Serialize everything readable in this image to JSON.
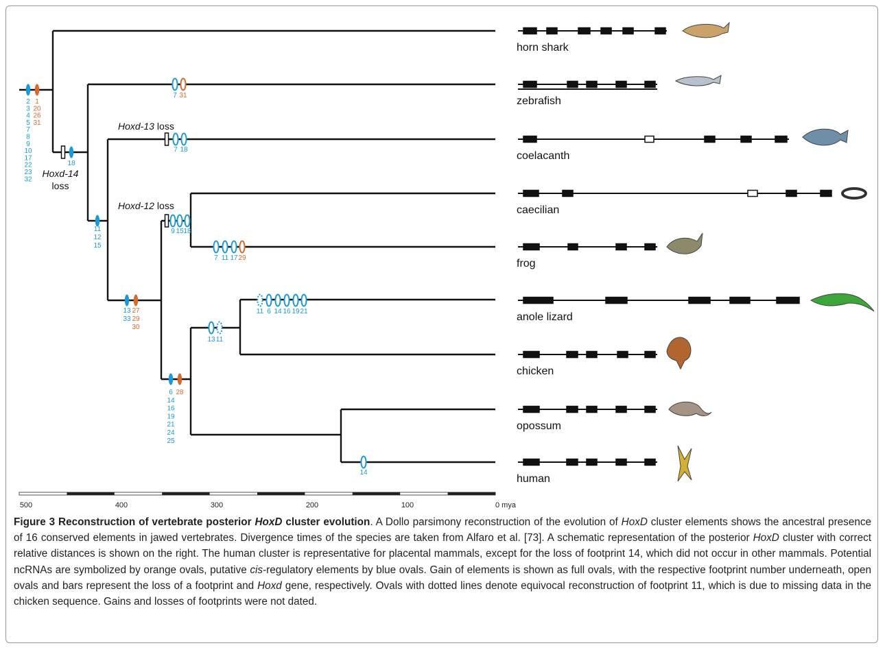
{
  "figure": {
    "species": [
      "horn shark",
      "zebrafish",
      "coelacanth",
      "caecilian",
      "frog",
      "anole lizard",
      "chicken",
      "opossum",
      "human"
    ],
    "events": [
      {
        "columns": [
          [
            "2",
            "3",
            "4",
            "5",
            "7",
            "8",
            "9",
            "10",
            "17",
            "22",
            "23",
            "32"
          ],
          [
            "1",
            "20",
            "26",
            "31"
          ]
        ]
      },
      {
        "columns": [
          [
            "18"
          ]
        ]
      },
      {
        "columns": [
          [
            "7"
          ],
          [
            "31"
          ]
        ]
      },
      {
        "columns": [
          [
            "7"
          ],
          [
            "18"
          ]
        ]
      },
      {
        "columns": [
          [
            "11",
            "12",
            "15"
          ]
        ]
      },
      {
        "columns": [
          [
            "9"
          ],
          [
            "15"
          ],
          [
            "18"
          ]
        ]
      },
      {
        "columns": [
          [
            "7"
          ],
          [
            "11"
          ],
          [
            "17"
          ],
          [
            "29"
          ]
        ]
      },
      {
        "columns": [
          [
            "13",
            "33"
          ],
          [
            "27",
            "29",
            "30"
          ]
        ]
      },
      {
        "columns": [
          [
            "13"
          ],
          [
            "11"
          ]
        ]
      },
      {
        "columns": [
          [
            "11"
          ],
          [
            "6"
          ],
          [
            "14"
          ],
          [
            "16"
          ],
          [
            "19"
          ],
          [
            "21"
          ]
        ]
      },
      {
        "columns": [
          [
            "6",
            "14",
            "16",
            "19",
            "21",
            "24",
            "25"
          ],
          [
            "28"
          ]
        ]
      },
      {
        "columns": [
          [
            "14"
          ]
        ]
      }
    ],
    "gene_losses": [
      {
        "gene": "Hoxd-14",
        "text": "loss"
      },
      {
        "gene": "Hoxd-13",
        "text": "loss"
      },
      {
        "gene": "Hoxd-12",
        "text": "loss"
      }
    ],
    "axis_labels": [
      "500",
      "400",
      "300",
      "200",
      "100",
      "0 mya"
    ]
  },
  "caption": [
    {
      "text": "Figure 3 Reconstruction of vertebrate posterior ",
      "style": "bold"
    },
    {
      "text": "HoxD",
      "style": "bold-italic"
    },
    {
      "text": " cluster evolution",
      "style": "bold"
    },
    {
      "text": ". A Dollo parsimony reconstruction of the evolution of ",
      "style": "normal"
    },
    {
      "text": "HoxD",
      "style": "italic"
    },
    {
      "text": " cluster elements shows the ancestral presence of 16 conserved elements in jawed vertebrates. Divergence times of the species are taken from Alfaro et al. [73]. A schematic representation of the posterior ",
      "style": "normal"
    },
    {
      "text": "HoxD",
      "style": "italic"
    },
    {
      "text": " cluster with correct relative distances is shown on the right. The human cluster is representative for placental mammals, except for the loss of footprint 14, which did not occur in other mammals. Potential ncRNAs are symbolized by orange ovals, putative ",
      "style": "normal"
    },
    {
      "text": "cis",
      "style": "italic"
    },
    {
      "text": "-regulatory elements by blue ovals. Gain of elements is shown as full ovals, with the respective footprint number underneath, open ovals and bars represent the loss of a footprint and ",
      "style": "normal"
    },
    {
      "text": "Hoxd",
      "style": "italic"
    },
    {
      "text": " gene, respectively. Ovals with dotted lines denote equivocal reconstruction of footprint 11, which is due to missing data in the chicken sequence. Gains and losses of footprints were not dated.",
      "style": "normal"
    }
  ]
}
